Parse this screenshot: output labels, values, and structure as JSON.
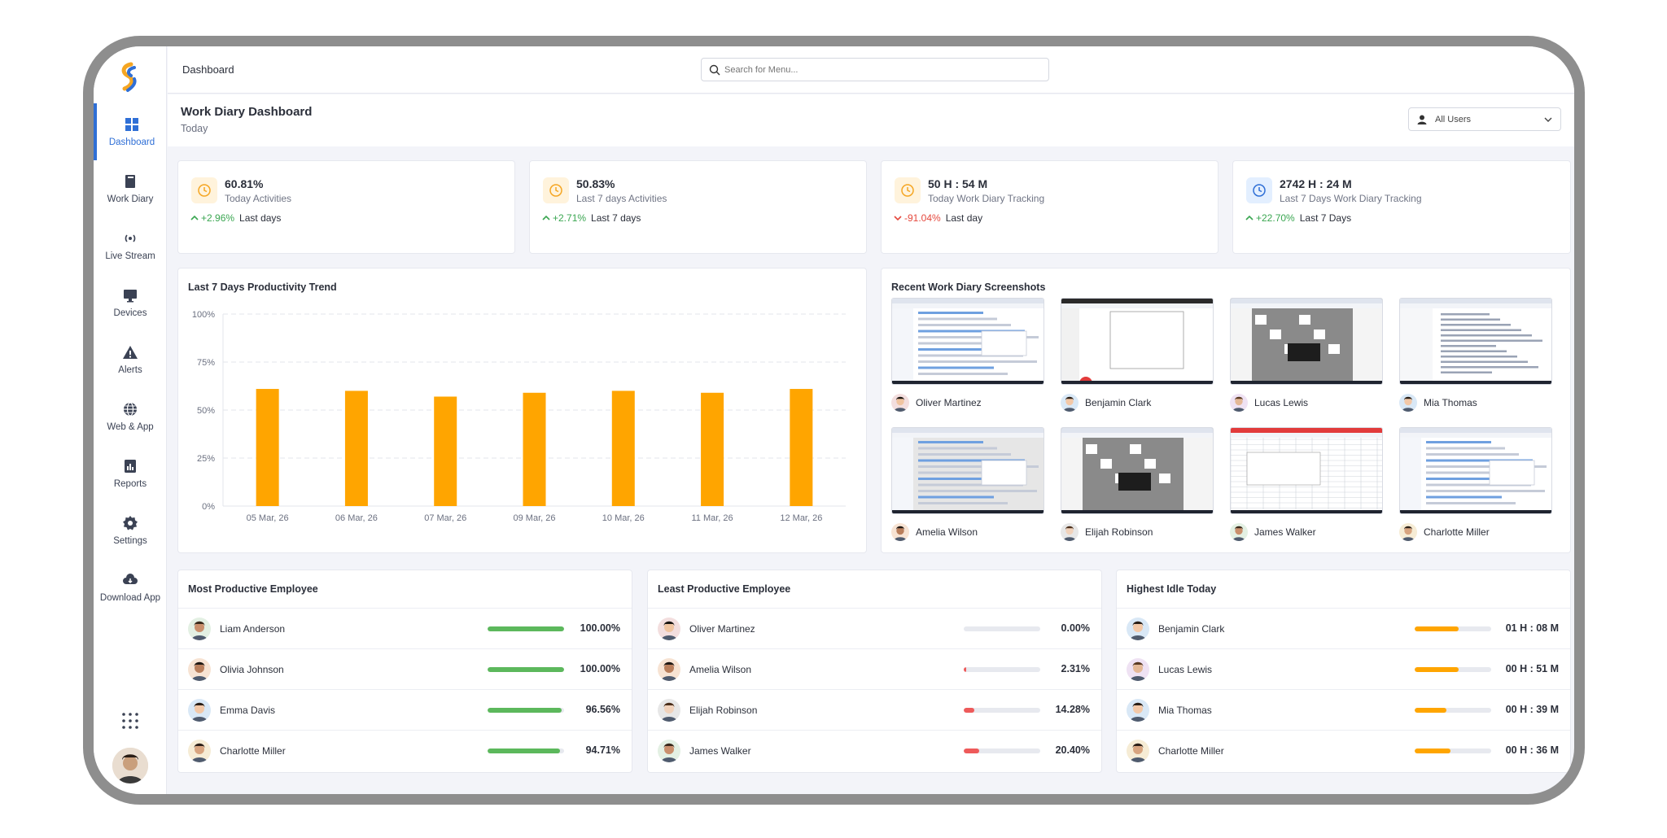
{
  "header": {
    "breadcrumb": "Dashboard",
    "search_placeholder": "Search for Menu..."
  },
  "page": {
    "title": "Work Diary Dashboard",
    "subtitle": "Today",
    "users_filter": "All Users"
  },
  "sidebar": {
    "items": [
      {
        "label": "Dashboard",
        "icon": "grid-icon",
        "active": true
      },
      {
        "label": "Work Diary",
        "icon": "book-icon"
      },
      {
        "label": "Live Stream",
        "icon": "broadcast-icon"
      },
      {
        "label": "Devices",
        "icon": "monitor-icon"
      },
      {
        "label": "Alerts",
        "icon": "warning-icon"
      },
      {
        "label": "Web & App",
        "icon": "globe-icon"
      },
      {
        "label": "Reports",
        "icon": "report-icon"
      },
      {
        "label": "Settings",
        "icon": "gear-icon"
      },
      {
        "label": "Download App",
        "icon": "cloud-download-icon"
      }
    ]
  },
  "stats": [
    {
      "value": "60.81%",
      "label": "Today Activities",
      "trend": "+2.96%",
      "direction": "up",
      "period": "Last days",
      "icon_bg": "#fff3dc",
      "icon_color": "#f5a623"
    },
    {
      "value": "50.83%",
      "label": "Last 7 days Activities",
      "trend": "+2.71%",
      "direction": "up",
      "period": "Last 7 days",
      "icon_bg": "#fff3dc",
      "icon_color": "#f5a623"
    },
    {
      "value": "50 H : 54 M",
      "label": "Today Work Diary Tracking",
      "trend": "-91.04%",
      "direction": "down",
      "period": "Last day",
      "icon_bg": "#fff3dc",
      "icon_color": "#f5a623"
    },
    {
      "value": "2742 H : 24 M",
      "label": "Last 7 Days Work Diary Tracking",
      "trend": "+22.70%",
      "direction": "up",
      "period": "Last 7 Days",
      "icon_bg": "#e3efff",
      "icon_color": "#2f6fd6"
    }
  ],
  "trend_card": {
    "title": "Last 7 Days Productivity Trend"
  },
  "chart_data": {
    "type": "bar",
    "categories": [
      "05 Mar, 26",
      "06 Mar, 26",
      "07 Mar, 26",
      "09 Mar, 26",
      "10 Mar, 26",
      "11 Mar, 26",
      "12 Mar, 26"
    ],
    "values": [
      61,
      60,
      57,
      59,
      60,
      59,
      61
    ],
    "yticks": [
      "0%",
      "25%",
      "50%",
      "75%",
      "100%"
    ],
    "ylim": [
      0,
      100
    ],
    "color": "#ffa500",
    "grid": true
  },
  "screenshots_card": {
    "title": "Recent Work Diary Screenshots",
    "items": [
      {
        "name": "Oliver Martinez",
        "theme": "light"
      },
      {
        "name": "Benjamin Clark",
        "theme": "dark-top"
      },
      {
        "name": "Lucas Lewis",
        "theme": "gray"
      },
      {
        "name": "Mia Thomas",
        "theme": "doc"
      },
      {
        "name": "Amelia Wilson",
        "theme": "gray-light"
      },
      {
        "name": "Elijah Robinson",
        "theme": "gray"
      },
      {
        "name": "James Walker",
        "theme": "sheet"
      },
      {
        "name": "Charlotte Miller",
        "theme": "light"
      }
    ]
  },
  "most_productive": {
    "title": "Most Productive Employee",
    "color": "#5cb85c",
    "rows": [
      {
        "name": "Liam Anderson",
        "value": "100.00%",
        "fill": 1.0
      },
      {
        "name": "Olivia Johnson",
        "value": "100.00%",
        "fill": 1.0
      },
      {
        "name": "Emma Davis",
        "value": "96.56%",
        "fill": 0.9656
      },
      {
        "name": "Charlotte Miller",
        "value": "94.71%",
        "fill": 0.9471
      }
    ]
  },
  "least_productive": {
    "title": "Least Productive Employee",
    "color": "#ee5a5a",
    "rows": [
      {
        "name": "Oliver Martinez",
        "value": "0.00%",
        "fill": 0.0
      },
      {
        "name": "Amelia Wilson",
        "value": "2.31%",
        "fill": 0.0231
      },
      {
        "name": "Elijah Robinson",
        "value": "14.28%",
        "fill": 0.1428
      },
      {
        "name": "James Walker",
        "value": "20.40%",
        "fill": 0.204
      }
    ]
  },
  "highest_idle": {
    "title": "Highest Idle Today",
    "color": "#ffa500",
    "rows": [
      {
        "name": "Benjamin Clark",
        "value": "01 H : 08 M",
        "fill": 0.57
      },
      {
        "name": "Lucas Lewis",
        "value": "00 H : 51 M",
        "fill": 0.57
      },
      {
        "name": "Mia Thomas",
        "value": "00 H : 39 M",
        "fill": 0.41
      },
      {
        "name": "Charlotte Miller",
        "value": "00 H : 36 M",
        "fill": 0.47
      }
    ]
  }
}
